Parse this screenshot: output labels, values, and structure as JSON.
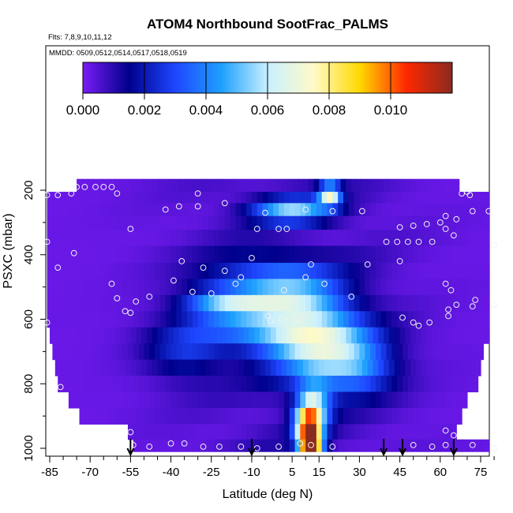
{
  "chart_data": {
    "type": "heatmap",
    "title": "ATOM4 Northbound SootFrac_PALMS",
    "subtitle_flights": "Flts: 7,8,9,10,11,12",
    "subtitle_dates": "MMDD: 0509,0512,0514,0517,0518,0519",
    "xlabel": "Latitude (deg N)",
    "ylabel": "PSXC (mbar)",
    "xlim": [
      -87,
      82
    ],
    "ylim": [
      1010,
      140
    ],
    "x_ticks": [
      -85,
      -70,
      -55,
      -40,
      -25,
      -10,
      5,
      15,
      30,
      45,
      60,
      75
    ],
    "y_ticks": [
      200,
      400,
      600,
      800,
      1000
    ],
    "colorbar": {
      "min": 0.0,
      "max": 0.012,
      "ticks": [
        0.0,
        0.002,
        0.004,
        0.006,
        0.008,
        0.01
      ],
      "tick_labels": [
        "0.000",
        "0.002",
        "0.004",
        "0.006",
        "0.008",
        "0.010"
      ],
      "colors": [
        "#7a1cf5",
        "#00008c",
        "#1e46ff",
        "#1ea0ff",
        "#c8f0ff",
        "#fffac8",
        "#ffd800",
        "#ff2800",
        "#8b2a1f"
      ]
    },
    "pressure_bands": [
      {
        "p": 190,
        "lat_min": -75,
        "lat_max": 67
      },
      {
        "p": 220,
        "lat_min": -86,
        "lat_max": 80
      },
      {
        "p": 260,
        "lat_min": -86,
        "lat_max": 80
      },
      {
        "p": 300,
        "lat_min": -86,
        "lat_max": 80
      },
      {
        "p": 345,
        "lat_min": -86,
        "lat_max": 79
      },
      {
        "p": 400,
        "lat_min": -86,
        "lat_max": 79
      },
      {
        "p": 450,
        "lat_min": -86,
        "lat_max": 79
      },
      {
        "p": 500,
        "lat_min": -86,
        "lat_max": 79
      },
      {
        "p": 550,
        "lat_min": -86,
        "lat_max": 80
      },
      {
        "p": 600,
        "lat_min": -86,
        "lat_max": 80
      },
      {
        "p": 650,
        "lat_min": -85,
        "lat_max": 78
      },
      {
        "p": 700,
        "lat_min": -84,
        "lat_max": 76
      },
      {
        "p": 750,
        "lat_min": -83,
        "lat_max": 75
      },
      {
        "p": 800,
        "lat_min": -82,
        "lat_max": 73
      },
      {
        "p": 850,
        "lat_min": -78,
        "lat_max": 70
      },
      {
        "p": 900,
        "lat_min": -74,
        "lat_max": 67
      },
      {
        "p": 950,
        "lat_min": -56,
        "lat_max": 66
      },
      {
        "p": 995,
        "lat_min": -54,
        "lat_max": 80
      }
    ],
    "soot_hotspots": [
      {
        "lat": 12,
        "p": 990,
        "dlat": 4,
        "dp": 40,
        "value": 0.0115
      },
      {
        "lat": 11,
        "p": 930,
        "dlat": 5,
        "dp": 60,
        "value": 0.0075
      },
      {
        "lat": 13,
        "p": 870,
        "dlat": 6,
        "dp": 70,
        "value": 0.0045
      },
      {
        "lat": 15,
        "p": 700,
        "dlat": 18,
        "dp": 120,
        "value": 0.004
      },
      {
        "lat": 5,
        "p": 550,
        "dlat": 20,
        "dp": 80,
        "value": 0.0045
      },
      {
        "lat": -20,
        "p": 550,
        "dlat": 16,
        "dp": 50,
        "value": 0.004
      },
      {
        "lat": 5,
        "p": 260,
        "dlat": 15,
        "dp": 40,
        "value": 0.0045
      },
      {
        "lat": 19,
        "p": 215,
        "dlat": 4,
        "dp": 30,
        "value": 0.006
      },
      {
        "lat": 0,
        "p": 650,
        "dlat": 30,
        "dp": 60,
        "value": 0.003
      },
      {
        "lat": 30,
        "p": 750,
        "dlat": 14,
        "dp": 80,
        "value": 0.0028
      },
      {
        "lat": -5,
        "p": 450,
        "dlat": 25,
        "dp": 60,
        "value": 0.002
      },
      {
        "lat": -35,
        "p": 700,
        "dlat": 15,
        "dp": 90,
        "value": 0.0018
      }
    ],
    "sample_points": [
      [
        -75,
        190
      ],
      [
        -72,
        190
      ],
      [
        -68,
        190
      ],
      [
        -65,
        190
      ],
      [
        -62,
        190
      ],
      [
        -86,
        215
      ],
      [
        -82,
        215
      ],
      [
        -77,
        210
      ],
      [
        -60,
        210
      ],
      [
        -30,
        210
      ],
      [
        68,
        210
      ],
      [
        70,
        205
      ],
      [
        71,
        215
      ],
      [
        -30,
        250
      ],
      [
        -37,
        250
      ],
      [
        -42,
        260
      ],
      [
        -20,
        240
      ],
      [
        -5,
        270
      ],
      [
        10,
        260
      ],
      [
        20,
        265
      ],
      [
        31,
        265
      ],
      [
        62,
        280
      ],
      [
        66,
        290
      ],
      [
        72,
        265
      ],
      [
        78,
        265
      ],
      [
        -55,
        320
      ],
      [
        -8,
        320
      ],
      [
        0,
        320
      ],
      [
        3,
        320
      ],
      [
        45,
        315
      ],
      [
        50,
        310
      ],
      [
        55,
        305
      ],
      [
        60,
        300
      ],
      [
        62,
        320
      ],
      [
        40,
        360
      ],
      [
        44,
        360
      ],
      [
        48,
        360
      ],
      [
        52,
        360
      ],
      [
        57,
        360
      ],
      [
        80,
        370
      ],
      [
        65,
        340
      ],
      [
        -86,
        360
      ],
      [
        -76,
        395
      ],
      [
        -36,
        420
      ],
      [
        -10,
        410
      ],
      [
        12,
        430
      ],
      [
        33,
        430
      ],
      [
        45,
        420
      ],
      [
        -82,
        440
      ],
      [
        -28,
        440
      ],
      [
        -20,
        450
      ],
      [
        -14,
        470
      ],
      [
        10,
        470
      ],
      [
        17,
        490
      ],
      [
        62,
        490
      ],
      [
        64,
        510
      ],
      [
        -62,
        490
      ],
      [
        -39,
        480
      ],
      [
        -16,
        490
      ],
      [
        2,
        510
      ],
      [
        -32,
        515
      ],
      [
        -25,
        520
      ],
      [
        5,
        540
      ],
      [
        27,
        530
      ],
      [
        -53,
        545
      ],
      [
        -60,
        535
      ],
      [
        -48,
        530
      ],
      [
        -10,
        545
      ],
      [
        -2,
        545
      ],
      [
        66,
        555
      ],
      [
        73,
        540
      ],
      [
        72,
        560
      ],
      [
        80,
        555
      ],
      [
        63,
        570
      ],
      [
        -55,
        580
      ],
      [
        -57,
        575
      ],
      [
        -4,
        590
      ],
      [
        -3,
        605
      ],
      [
        1,
        600
      ],
      [
        7,
        600
      ],
      [
        46,
        595
      ],
      [
        50,
        610
      ],
      [
        52,
        620
      ],
      [
        56,
        610
      ],
      [
        63,
        590
      ],
      [
        -86,
        610
      ],
      [
        20,
        690
      ],
      [
        -81,
        810
      ],
      [
        -55,
        950
      ],
      [
        62,
        945
      ],
      [
        65,
        960
      ],
      [
        -54,
        990
      ],
      [
        -48,
        995
      ],
      [
        -40,
        985
      ],
      [
        -35,
        985
      ],
      [
        -28,
        995
      ],
      [
        -22,
        995
      ],
      [
        -14,
        995
      ],
      [
        -8,
        1000
      ],
      [
        0,
        995
      ],
      [
        8,
        985
      ],
      [
        12,
        990
      ],
      [
        20,
        995
      ],
      [
        50,
        990
      ],
      [
        57,
        995
      ],
      [
        62,
        990
      ],
      [
        72,
        990
      ],
      [
        80,
        1000
      ]
    ],
    "arrow_latitudes": [
      -55,
      -10,
      39,
      46,
      65
    ]
  }
}
